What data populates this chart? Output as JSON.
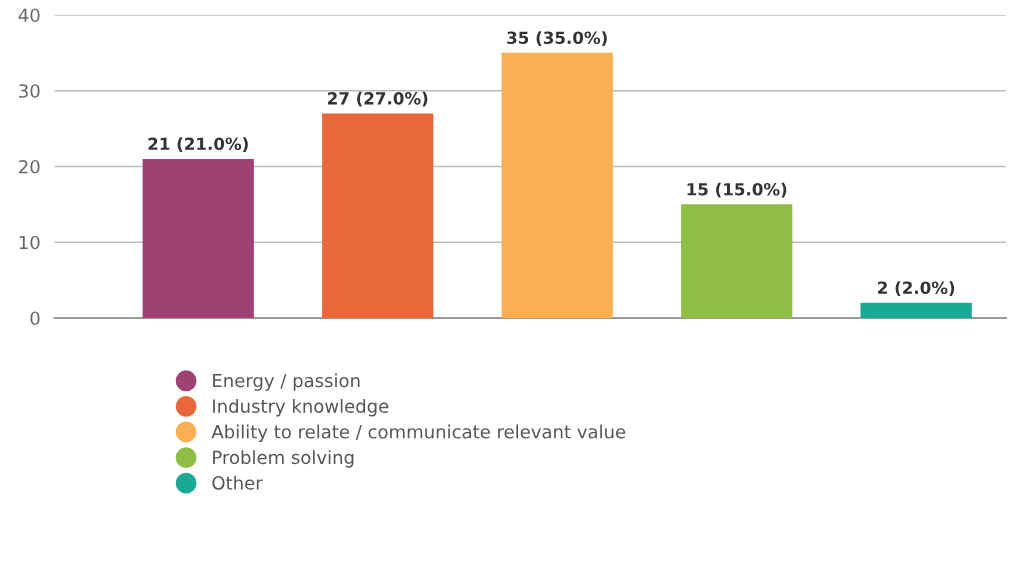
{
  "chart_data": {
    "type": "bar",
    "categories": [
      null,
      null,
      null,
      null,
      null
    ],
    "series": [
      {
        "name": "Energy / passion",
        "color": "#9e4273",
        "values": [
          21,
          null,
          null,
          null,
          null
        ],
        "value_labels": [
          "21 (21.0%)",
          null,
          null,
          null,
          null
        ]
      },
      {
        "name": "Industry knowledge",
        "color": "#ea663b",
        "values": [
          null,
          27,
          null,
          null,
          null
        ],
        "value_labels": [
          null,
          "27 (27.0%)",
          null,
          null,
          null
        ]
      },
      {
        "name": "Ability to relate / communicate relevant value",
        "color": "#f9b052",
        "values": [
          null,
          null,
          35,
          null,
          null
        ],
        "value_labels": [
          null,
          null,
          "35 (35.0%)",
          null,
          null
        ]
      },
      {
        "name": "Problem solving",
        "color": "#8fbe44",
        "values": [
          null,
          null,
          null,
          15,
          null
        ],
        "value_labels": [
          null,
          null,
          null,
          "15 (15.0%)",
          null
        ]
      },
      {
        "name": "Other",
        "color": "#1aa994",
        "values": [
          null,
          null,
          null,
          null,
          2
        ],
        "value_labels": [
          null,
          null,
          null,
          null,
          "2 (2.0%)"
        ]
      }
    ],
    "ylim": [
      0,
      40
    ],
    "yticks": [
      0,
      10,
      20,
      30,
      40
    ],
    "grid": "y",
    "legend": "bottom",
    "tick_labels": "y"
  }
}
